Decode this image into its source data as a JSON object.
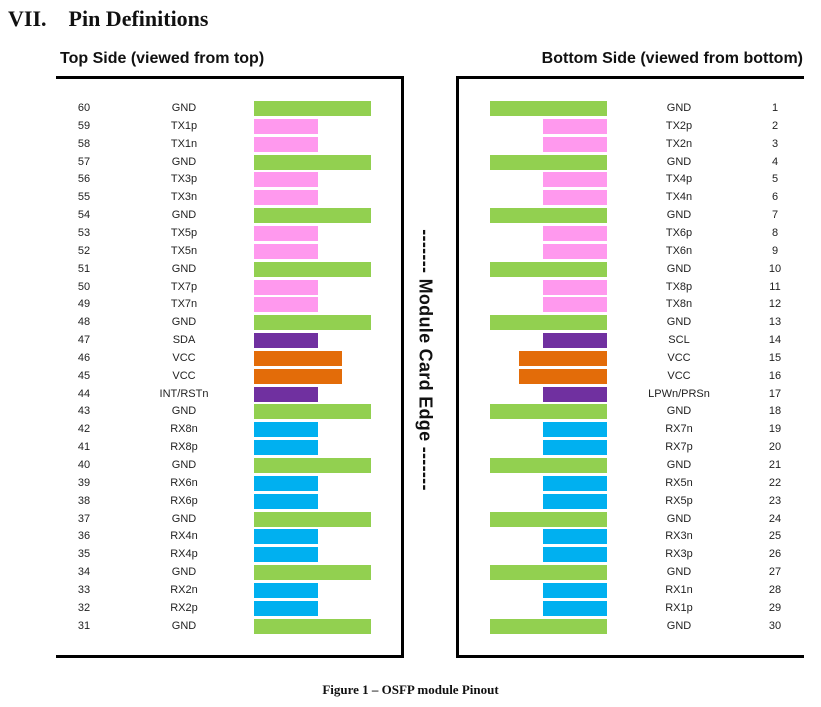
{
  "heading": {
    "number": "VII.",
    "title": "Pin Definitions"
  },
  "top_side": {
    "title": "Top Side (viewed from top)"
  },
  "bottom_side": {
    "title": "Bottom Side (viewed from bottom)"
  },
  "edge_label": "------- Module Card Edge -------",
  "caption": "Figure 1 – OSFP module Pinout",
  "colors": {
    "GND": "#92d050",
    "TX": "#ff99ee",
    "RX": "#00b0f0",
    "VCC": "#e36c09",
    "CTRL": "#7030a0"
  },
  "bar_levels": {
    "GND": 1.0,
    "VCC": 0.75,
    "TX": 0.55,
    "RX": 0.55,
    "CTRL": 0.55
  },
  "top_pins": [
    {
      "pin": "60",
      "signal": "GND",
      "type": "GND"
    },
    {
      "pin": "59",
      "signal": "TX1p",
      "type": "TX"
    },
    {
      "pin": "58",
      "signal": "TX1n",
      "type": "TX"
    },
    {
      "pin": "57",
      "signal": "GND",
      "type": "GND"
    },
    {
      "pin": "56",
      "signal": "TX3p",
      "type": "TX"
    },
    {
      "pin": "55",
      "signal": "TX3n",
      "type": "TX"
    },
    {
      "pin": "54",
      "signal": "GND",
      "type": "GND"
    },
    {
      "pin": "53",
      "signal": "TX5p",
      "type": "TX"
    },
    {
      "pin": "52",
      "signal": "TX5n",
      "type": "TX"
    },
    {
      "pin": "51",
      "signal": "GND",
      "type": "GND"
    },
    {
      "pin": "50",
      "signal": "TX7p",
      "type": "TX"
    },
    {
      "pin": "49",
      "signal": "TX7n",
      "type": "TX"
    },
    {
      "pin": "48",
      "signal": "GND",
      "type": "GND"
    },
    {
      "pin": "47",
      "signal": "SDA",
      "type": "CTRL"
    },
    {
      "pin": "46",
      "signal": "VCC",
      "type": "VCC"
    },
    {
      "pin": "45",
      "signal": "VCC",
      "type": "VCC"
    },
    {
      "pin": "44",
      "signal": "INT/RSTn",
      "type": "CTRL"
    },
    {
      "pin": "43",
      "signal": "GND",
      "type": "GND"
    },
    {
      "pin": "42",
      "signal": "RX8n",
      "type": "RX"
    },
    {
      "pin": "41",
      "signal": "RX8p",
      "type": "RX"
    },
    {
      "pin": "40",
      "signal": "GND",
      "type": "GND"
    },
    {
      "pin": "39",
      "signal": "RX6n",
      "type": "RX"
    },
    {
      "pin": "38",
      "signal": "RX6p",
      "type": "RX"
    },
    {
      "pin": "37",
      "signal": "GND",
      "type": "GND"
    },
    {
      "pin": "36",
      "signal": "RX4n",
      "type": "RX"
    },
    {
      "pin": "35",
      "signal": "RX4p",
      "type": "RX"
    },
    {
      "pin": "34",
      "signal": "GND",
      "type": "GND"
    },
    {
      "pin": "33",
      "signal": "RX2n",
      "type": "RX"
    },
    {
      "pin": "32",
      "signal": "RX2p",
      "type": "RX"
    },
    {
      "pin": "31",
      "signal": "GND",
      "type": "GND"
    }
  ],
  "bottom_pins": [
    {
      "pin": "1",
      "signal": "GND",
      "type": "GND"
    },
    {
      "pin": "2",
      "signal": "TX2p",
      "type": "TX"
    },
    {
      "pin": "3",
      "signal": "TX2n",
      "type": "TX"
    },
    {
      "pin": "4",
      "signal": "GND",
      "type": "GND"
    },
    {
      "pin": "5",
      "signal": "TX4p",
      "type": "TX"
    },
    {
      "pin": "6",
      "signal": "TX4n",
      "type": "TX"
    },
    {
      "pin": "7",
      "signal": "GND",
      "type": "GND"
    },
    {
      "pin": "8",
      "signal": "TX6p",
      "type": "TX"
    },
    {
      "pin": "9",
      "signal": "TX6n",
      "type": "TX"
    },
    {
      "pin": "10",
      "signal": "GND",
      "type": "GND"
    },
    {
      "pin": "11",
      "signal": "TX8p",
      "type": "TX"
    },
    {
      "pin": "12",
      "signal": "TX8n",
      "type": "TX"
    },
    {
      "pin": "13",
      "signal": "GND",
      "type": "GND"
    },
    {
      "pin": "14",
      "signal": "SCL",
      "type": "CTRL"
    },
    {
      "pin": "15",
      "signal": "VCC",
      "type": "VCC"
    },
    {
      "pin": "16",
      "signal": "VCC",
      "type": "VCC"
    },
    {
      "pin": "17",
      "signal": "LPWn/PRSn",
      "type": "CTRL"
    },
    {
      "pin": "18",
      "signal": "GND",
      "type": "GND"
    },
    {
      "pin": "19",
      "signal": "RX7n",
      "type": "RX"
    },
    {
      "pin": "20",
      "signal": "RX7p",
      "type": "RX"
    },
    {
      "pin": "21",
      "signal": "GND",
      "type": "GND"
    },
    {
      "pin": "22",
      "signal": "RX5n",
      "type": "RX"
    },
    {
      "pin": "23",
      "signal": "RX5p",
      "type": "RX"
    },
    {
      "pin": "24",
      "signal": "GND",
      "type": "GND"
    },
    {
      "pin": "25",
      "signal": "RX3n",
      "type": "RX"
    },
    {
      "pin": "26",
      "signal": "RX3p",
      "type": "RX"
    },
    {
      "pin": "27",
      "signal": "GND",
      "type": "GND"
    },
    {
      "pin": "28",
      "signal": "RX1n",
      "type": "RX"
    },
    {
      "pin": "29",
      "signal": "RX1p",
      "type": "RX"
    },
    {
      "pin": "30",
      "signal": "GND",
      "type": "GND"
    }
  ]
}
